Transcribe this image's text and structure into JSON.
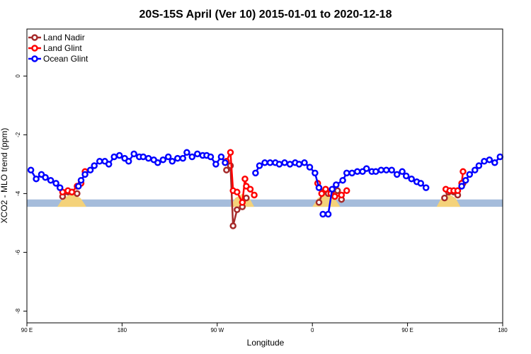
{
  "chart_data": {
    "type": "line",
    "title": "20S-15S April (Ver 10)   2015-01-01 to 2020-12-18",
    "xlabel": "Longitude",
    "ylabel": "XCO2 - MLO trend (ppm)",
    "xlim": [
      90,
      450
    ],
    "ylim": [
      -8.4,
      1.6
    ],
    "x_ticks": [
      {
        "value": 90,
        "label": "90 E"
      },
      {
        "value": 162,
        "label": "180"
      },
      {
        "value": 234,
        "label": "90 W"
      },
      {
        "value": 306,
        "label": "0"
      },
      {
        "value": 378,
        "label": "90 E"
      },
      {
        "value": 450,
        "label": "180"
      }
    ],
    "y_ticks": [
      {
        "value": 0,
        "label": "0"
      },
      {
        "value": -2,
        "label": "-2"
      },
      {
        "value": -4,
        "label": "-4"
      },
      {
        "value": -6,
        "label": "-6"
      },
      {
        "value": -8,
        "label": "-8"
      }
    ],
    "legend_position": "top-left",
    "series": [
      {
        "name": "Land Nadir",
        "color": "#a52a2a",
        "segments": [
          [
            [
              117,
              -4.1
            ],
            [
              121,
              -3.95
            ],
            [
              124,
              -3.95
            ],
            [
              128,
              -4.0
            ]
          ],
          [
            [
              241,
              -3.2
            ],
            [
              244,
              -3.05
            ],
            [
              246,
              -5.1
            ],
            [
              249,
              -4.55
            ],
            [
              253,
              -4.45
            ],
            [
              256,
              -4.15
            ]
          ],
          [
            [
              311,
              -4.3
            ],
            [
              314,
              -3.95
            ],
            [
              318,
              -4.0
            ],
            [
              321,
              -3.9
            ],
            [
              325,
              -3.9
            ],
            [
              328,
              -4.2
            ]
          ],
          [
            [
              406,
              -4.15
            ],
            [
              409,
              -3.95
            ],
            [
              413,
              -3.95
            ],
            [
              416,
              -4.05
            ],
            [
              420,
              -3.65
            ]
          ]
        ]
      },
      {
        "name": "Land Glint",
        "color": "#ff0000",
        "segments": [
          [
            [
              117,
              -3.95
            ],
            [
              121,
              -3.9
            ],
            [
              124,
              -3.95
            ],
            [
              128,
              -3.75
            ],
            [
              131,
              -3.65
            ],
            [
              134,
              -3.25
            ]
          ],
          [
            [
              241,
              -2.9
            ],
            [
              244,
              -2.6
            ],
            [
              246,
              -3.9
            ],
            [
              249,
              -3.95
            ],
            [
              253,
              -4.3
            ],
            [
              255,
              -3.5
            ],
            [
              256,
              -3.75
            ],
            [
              259,
              -3.85
            ],
            [
              262,
              -4.05
            ]
          ],
          [
            [
              310,
              -3.65
            ],
            [
              313,
              -4.0
            ],
            [
              316,
              -3.85
            ],
            [
              320,
              -4.0
            ],
            [
              323,
              -4.1
            ],
            [
              328,
              -4.05
            ],
            [
              332,
              -3.9
            ]
          ],
          [
            [
              407,
              -3.85
            ],
            [
              410,
              -3.9
            ],
            [
              413,
              -3.9
            ],
            [
              416,
              -3.9
            ],
            [
              419,
              -3.65
            ],
            [
              420,
              -3.25
            ]
          ]
        ]
      },
      {
        "name": "Ocean Glint",
        "color": "#0000ff",
        "segments": [
          [
            [
              93,
              -3.2
            ],
            [
              97,
              -3.5
            ],
            [
              101,
              -3.35
            ],
            [
              104,
              -3.45
            ],
            [
              108,
              -3.55
            ],
            [
              112,
              -3.65
            ],
            [
              115,
              -3.8
            ]
          ],
          [
            [
              129,
              -3.75
            ],
            [
              131,
              -3.55
            ],
            [
              134,
              -3.35
            ],
            [
              138,
              -3.2
            ],
            [
              141,
              -3.05
            ],
            [
              145,
              -2.9
            ],
            [
              149,
              -2.9
            ],
            [
              152,
              -3.0
            ],
            [
              156,
              -2.75
            ],
            [
              160,
              -2.7
            ],
            [
              164,
              -2.8
            ],
            [
              167,
              -2.9
            ],
            [
              171,
              -2.65
            ],
            [
              175,
              -2.75
            ],
            [
              178,
              -2.75
            ],
            [
              182,
              -2.8
            ],
            [
              186,
              -2.85
            ],
            [
              189,
              -2.95
            ],
            [
              193,
              -2.85
            ],
            [
              197,
              -2.75
            ],
            [
              200,
              -2.9
            ],
            [
              204,
              -2.8
            ],
            [
              208,
              -2.8
            ],
            [
              211,
              -2.6
            ],
            [
              215,
              -2.75
            ],
            [
              219,
              -2.65
            ],
            [
              223,
              -2.7
            ],
            [
              226,
              -2.7
            ],
            [
              229,
              -2.75
            ],
            [
              233,
              -3.0
            ],
            [
              237,
              -2.75
            ],
            [
              240,
              -2.95
            ]
          ],
          [
            [
              263,
              -3.3
            ],
            [
              266,
              -3.05
            ],
            [
              270,
              -2.95
            ],
            [
              274,
              -2.95
            ],
            [
              278,
              -2.95
            ],
            [
              281,
              -3.0
            ],
            [
              285,
              -2.95
            ],
            [
              289,
              -3.0
            ],
            [
              293,
              -2.95
            ],
            [
              296,
              -3.0
            ],
            [
              300,
              -2.95
            ],
            [
              304,
              -3.1
            ],
            [
              308,
              -3.3
            ],
            [
              311,
              -3.8
            ]
          ],
          [
            [
              314,
              -4.7
            ],
            [
              318,
              -4.7
            ],
            [
              321,
              -3.85
            ],
            [
              324,
              -3.7
            ],
            [
              329,
              -3.55
            ],
            [
              332,
              -3.3
            ],
            [
              336,
              -3.3
            ],
            [
              340,
              -3.25
            ],
            [
              344,
              -3.25
            ],
            [
              347,
              -3.15
            ],
            [
              351,
              -3.25
            ],
            [
              354,
              -3.25
            ],
            [
              358,
              -3.2
            ],
            [
              362,
              -3.2
            ],
            [
              366,
              -3.2
            ],
            [
              370,
              -3.35
            ],
            [
              374,
              -3.25
            ],
            [
              377,
              -3.4
            ],
            [
              381,
              -3.5
            ],
            [
              385,
              -3.6
            ],
            [
              388,
              -3.65
            ],
            [
              392,
              -3.8
            ]
          ],
          [
            [
              419,
              -3.75
            ],
            [
              422,
              -3.55
            ],
            [
              425,
              -3.35
            ],
            [
              429,
              -3.2
            ],
            [
              432,
              -3.05
            ],
            [
              436,
              -2.9
            ],
            [
              440,
              -2.85
            ],
            [
              444,
              -2.95
            ],
            [
              448,
              -2.75
            ]
          ]
        ]
      }
    ],
    "band": {
      "y_top": -4.2,
      "y_bottom": -4.45,
      "color": "#a5bcdb",
      "land_color": "#f4d27a",
      "land_ranges": [
        [
          113,
          135
        ],
        [
          244,
          262
        ],
        [
          306,
          327
        ],
        [
          400,
          418
        ]
      ]
    }
  }
}
